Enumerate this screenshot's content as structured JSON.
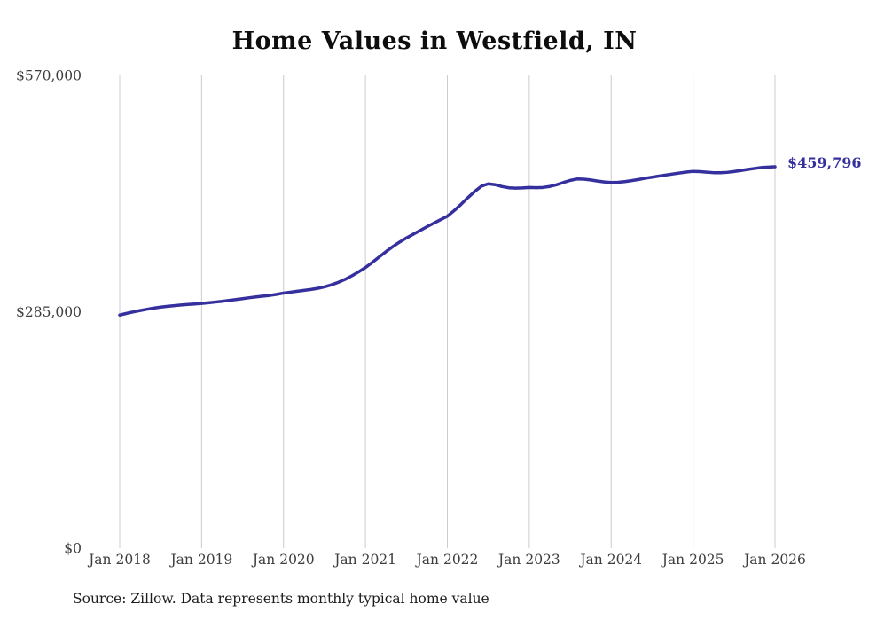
{
  "chart_data": {
    "type": "line",
    "title": "Home Values in Westfield, IN",
    "source_note": "Source: Zillow. Data represents monthly typical home value",
    "final_value_label": "$459,796",
    "final_value": 459796,
    "ylim": [
      0,
      570000
    ],
    "grid": "vertical-only",
    "gridline_color": "#cccccc",
    "y_ticks": [
      {
        "label": "$0",
        "value": 0
      },
      {
        "label": "$285,000",
        "value": 285000
      },
      {
        "label": "$570,000",
        "value": 570000
      }
    ],
    "x_ticks": [
      {
        "label": "Jan 2018",
        "month_index": 0
      },
      {
        "label": "Jan 2019",
        "month_index": 12
      },
      {
        "label": "Jan 2020",
        "month_index": 24
      },
      {
        "label": "Jan 2021",
        "month_index": 36
      },
      {
        "label": "Jan 2022",
        "month_index": 48
      },
      {
        "label": "Jan 2023",
        "month_index": 60
      },
      {
        "label": "Jan 2024",
        "month_index": 72
      },
      {
        "label": "Jan 2025",
        "month_index": 84
      },
      {
        "label": "Jan 2026",
        "month_index": 96
      }
    ],
    "series": [
      {
        "name": "Typical home value",
        "color": "#36309e",
        "start_month": "2018-01",
        "end_month": "2026-01",
        "monthly_values": [
          281000,
          283000,
          284800,
          286500,
          288000,
          289400,
          290600,
          291600,
          292400,
          293100,
          293800,
          294400,
          295000,
          295800,
          296700,
          297600,
          298600,
          299700,
          300800,
          301900,
          302900,
          303800,
          304700,
          306000,
          307500,
          308600,
          309700,
          310800,
          311900,
          313200,
          315000,
          317400,
          320400,
          324000,
          328300,
          333100,
          338300,
          344500,
          351000,
          357500,
          363500,
          369000,
          374000,
          378500,
          383000,
          387500,
          391800,
          396000,
          400200,
          407000,
          414500,
          422500,
          430000,
          436500,
          439300,
          438200,
          436000,
          434500,
          434000,
          434300,
          434900,
          434600,
          434900,
          436100,
          438100,
          440900,
          443400,
          445100,
          444900,
          443900,
          442600,
          441500,
          440900,
          441100,
          441900,
          443100,
          444500,
          446000,
          447300,
          448600,
          449900,
          451100,
          452300,
          453400,
          454300,
          454000,
          453300,
          452700,
          452600,
          453100,
          454100,
          455300,
          456600,
          457800,
          458900,
          459500,
          459796
        ]
      }
    ]
  }
}
